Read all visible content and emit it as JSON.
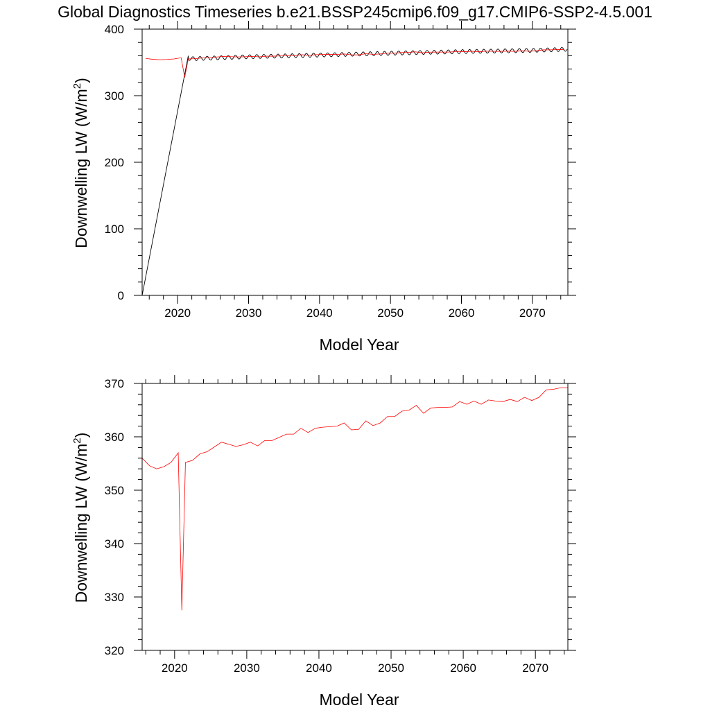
{
  "title": "Global Diagnostics Timeseries b.e21.BSSP245cmip6.f09_g17.CMIP6-SSP2-4.5.001",
  "chart_data": [
    {
      "type": "line",
      "xlabel": "Model Year",
      "ylabel_main": "Downwelling LW (W/m",
      "ylabel_sup": "2",
      "ylabel_close": ")",
      "xlim": [
        2015,
        2075
      ],
      "ylim": [
        0,
        400
      ],
      "xticks": [
        2020,
        2030,
        2040,
        2050,
        2060,
        2070
      ],
      "yticks": [
        0,
        100,
        200,
        300,
        400
      ],
      "ytick_labels": [
        "0",
        "100",
        "200",
        "300",
        "400"
      ],
      "xtick_labels": [
        "2020",
        "2030",
        "2040",
        "2050",
        "2060",
        "2070"
      ],
      "grid": false,
      "series": [
        {
          "color": "#000000",
          "style": "monthly",
          "start_jump": {
            "x": [
              2015.0,
              2021.5
            ],
            "y": [
              0,
              360
            ]
          },
          "trend": {
            "x": [
              2015.0,
              2021.0,
              2022.0,
              2030,
              2040,
              2050,
              2060,
              2070,
              2075
            ],
            "y": [
              356.0,
              357.0,
              355.5,
              358.5,
              361.0,
              363.8,
              366.2,
              368.0,
              369.8
            ]
          },
          "seasonal_amplitude": 3
        },
        {
          "color": "#ff0000",
          "style": "annual",
          "x": [
            2015.5,
            2016.5,
            2017.5,
            2018.5,
            2019.5,
            2020.5,
            2021.0,
            2021.5,
            2022.5,
            2023.5,
            2024.5,
            2025.5,
            2026.5,
            2027.5,
            2028.5,
            2029.5,
            2030.5,
            2031.5,
            2032.5,
            2033.5,
            2034.5,
            2035.5,
            2036.5,
            2037.5,
            2038.5,
            2039.5,
            2040.5,
            2041.5,
            2042.5,
            2043.5,
            2044.5,
            2045.5,
            2046.5,
            2047.5,
            2048.5,
            2049.5,
            2050.5,
            2051.5,
            2052.5,
            2053.5,
            2054.5,
            2055.5,
            2056.5,
            2057.5,
            2058.5,
            2059.5,
            2060.5,
            2061.5,
            2062.5,
            2063.5,
            2064.5,
            2065.5,
            2066.5,
            2067.5,
            2068.5,
            2069.5,
            2070.5,
            2071.5,
            2072.5,
            2073.5,
            2074.5
          ],
          "y": [
            356.0,
            354.6,
            354.0,
            354.4,
            355.2,
            357.0,
            327.5,
            355.2,
            355.6,
            356.8,
            357.2,
            358.1,
            359.0,
            358.6,
            358.2,
            358.5,
            359.0,
            358.3,
            359.3,
            359.3,
            359.9,
            360.5,
            360.5,
            361.6,
            360.8,
            361.6,
            361.8,
            361.9,
            362.0,
            362.6,
            361.3,
            361.4,
            363.0,
            362.1,
            362.6,
            363.8,
            363.8,
            364.8,
            365.0,
            365.9,
            364.4,
            365.4,
            365.5,
            365.5,
            365.6,
            366.6,
            366.1,
            366.7,
            366.1,
            366.9,
            366.7,
            366.6,
            367.0,
            366.6,
            367.4,
            366.8,
            367.4,
            368.8,
            368.9,
            369.2,
            369.2
          ]
        }
      ]
    },
    {
      "type": "line",
      "xlabel": "Model Year",
      "ylabel_main": "Downwelling LW (W/m",
      "ylabel_sup": "2",
      "ylabel_close": ")",
      "xlim": [
        2015.5,
        2074.5
      ],
      "ylim": [
        320,
        370
      ],
      "xticks": [
        2020,
        2030,
        2040,
        2050,
        2060,
        2070
      ],
      "yticks": [
        320,
        330,
        340,
        350,
        360,
        370
      ],
      "ytick_labels": [
        "320",
        "330",
        "340",
        "350",
        "360",
        "370"
      ],
      "xtick_labels": [
        "2020",
        "2030",
        "2040",
        "2050",
        "2060",
        "2070"
      ],
      "grid": false,
      "series": [
        {
          "color": "#ff0000",
          "style": "annual",
          "x": [
            2015.5,
            2016.5,
            2017.5,
            2018.5,
            2019.5,
            2020.5,
            2021.0,
            2021.5,
            2022.5,
            2023.5,
            2024.5,
            2025.5,
            2026.5,
            2027.5,
            2028.5,
            2029.5,
            2030.5,
            2031.5,
            2032.5,
            2033.5,
            2034.5,
            2035.5,
            2036.5,
            2037.5,
            2038.5,
            2039.5,
            2040.5,
            2041.5,
            2042.5,
            2043.5,
            2044.5,
            2045.5,
            2046.5,
            2047.5,
            2048.5,
            2049.5,
            2050.5,
            2051.5,
            2052.5,
            2053.5,
            2054.5,
            2055.5,
            2056.5,
            2057.5,
            2058.5,
            2059.5,
            2060.5,
            2061.5,
            2062.5,
            2063.5,
            2064.5,
            2065.5,
            2066.5,
            2067.5,
            2068.5,
            2069.5,
            2070.5,
            2071.5,
            2072.5,
            2073.5,
            2074.5
          ],
          "y": [
            356.0,
            354.6,
            354.0,
            354.4,
            355.2,
            357.0,
            327.5,
            355.2,
            355.6,
            356.8,
            357.2,
            358.1,
            359.0,
            358.6,
            358.2,
            358.5,
            359.0,
            358.3,
            359.3,
            359.3,
            359.9,
            360.5,
            360.5,
            361.6,
            360.8,
            361.6,
            361.8,
            361.9,
            362.0,
            362.6,
            361.3,
            361.4,
            363.0,
            362.1,
            362.6,
            363.8,
            363.8,
            364.8,
            365.0,
            365.9,
            364.4,
            365.4,
            365.5,
            365.5,
            365.6,
            366.6,
            366.1,
            366.7,
            366.1,
            366.9,
            366.7,
            366.6,
            367.0,
            366.6,
            367.4,
            366.8,
            367.4,
            368.8,
            368.9,
            369.2,
            369.2
          ]
        }
      ]
    }
  ]
}
